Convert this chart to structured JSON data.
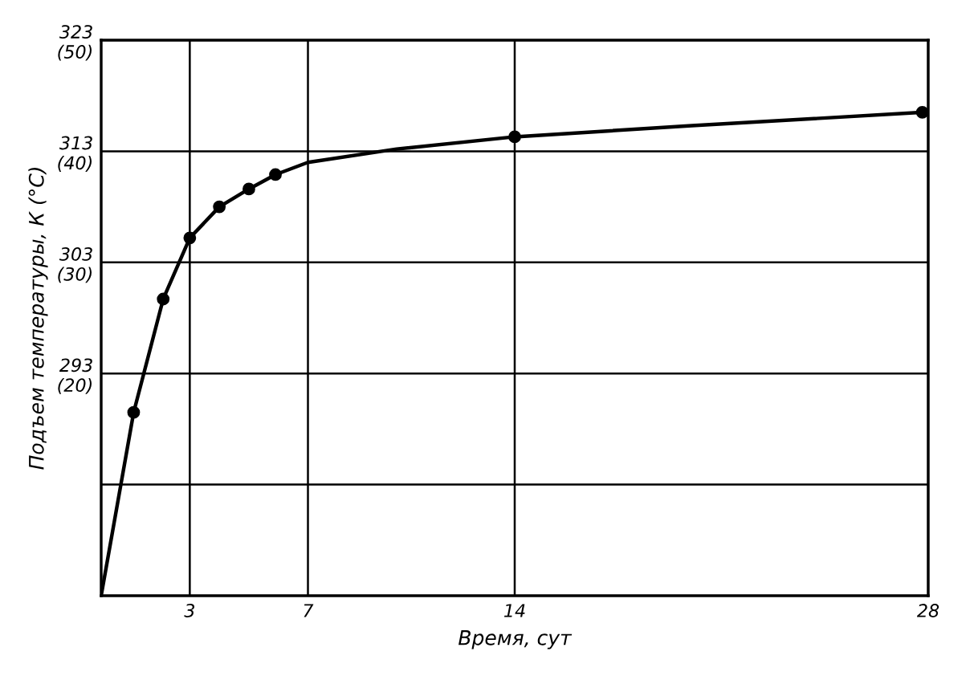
{
  "chart_data": {
    "type": "line",
    "xlabel": "Время, сут",
    "y2label": "Подъем температуры, К (°С)",
    "xlim": [
      0,
      28
    ],
    "xticks": [
      3,
      7,
      14,
      28
    ],
    "ylim": [
      273,
      323
    ],
    "yticks": [
      {
        "value": 283,
        "label": null
      },
      293,
      303,
      313,
      323
    ],
    "y2lim": [
      0,
      50
    ],
    "y2ticks": [
      {
        "value": 10,
        "label": null
      },
      {
        "value": 20,
        "label": "(20)"
      },
      {
        "value": 30,
        "label": "(30)"
      },
      {
        "value": 40,
        "label": "(40)"
      },
      {
        "value": 50,
        "label": "(50)"
      }
    ],
    "grid": true,
    "series": [
      {
        "color": "#000000",
        "marker": "none",
        "x": [
          0,
          1.1,
          2.1,
          3,
          4,
          5,
          5.9,
          7,
          10,
          14,
          20,
          27.8
        ],
        "values": [
          273,
          289.5,
          299.7,
          305.2,
          308,
          309.6,
          310.9,
          312,
          313.2,
          314.3,
          315.3,
          316.5
        ]
      },
      {
        "type": "scatter",
        "color": "#000000",
        "marker": "circle",
        "x": [
          1.1,
          2.1,
          3,
          4,
          5,
          5.9,
          14,
          27.8
        ],
        "values": [
          289.5,
          299.7,
          305.2,
          308,
          309.6,
          310.9,
          314.3,
          316.5
        ]
      }
    ]
  }
}
